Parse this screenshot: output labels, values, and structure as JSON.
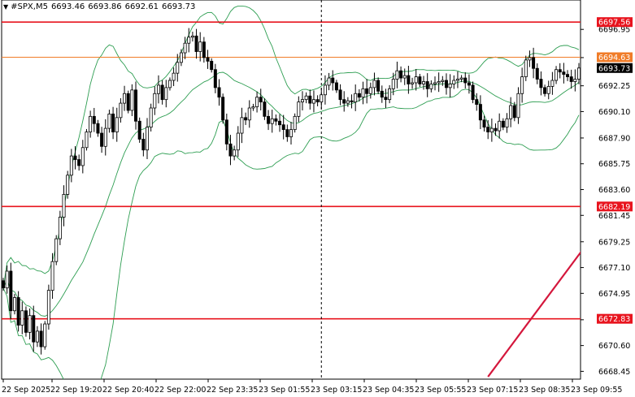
{
  "header": {
    "symbol": "#SPX,M5",
    "open": "6693.46",
    "high": "6693.86",
    "low": "6692.61",
    "close": "6693.73"
  },
  "chart_data": {
    "type": "candlestick",
    "ylim": [
      6667.8,
      6699.4
    ],
    "y_ticks": [
      "6696.95",
      "6694.60",
      "6692.25",
      "6690.10",
      "6687.90",
      "6685.75",
      "6683.60",
      "6681.45",
      "6679.25",
      "6677.10",
      "6674.95",
      "6672.75",
      "6670.60",
      "6668.45"
    ],
    "x_ticks": [
      "22 Sep 2025",
      "22 Sep 19:20",
      "22 Sep 20:40",
      "22 Sep 22:00",
      "22 Sep 23:35",
      "23 Sep 01:55",
      "23 Sep 03:15",
      "23 Sep 04:35",
      "23 Sep 05:55",
      "23 Sep 07:15",
      "23 Sep 08:35",
      "23 Sep 09:55"
    ],
    "price_lines": [
      {
        "label": "6697.56",
        "value": 6697.56,
        "color": "#e8141e"
      },
      {
        "label": "6694.63",
        "value": 6694.63,
        "color": "#f07c28"
      },
      {
        "label": "6682.19",
        "value": 6682.19,
        "color": "#e8141e"
      },
      {
        "label": "6672.83",
        "value": 6672.83,
        "color": "#e8141e"
      }
    ],
    "current_price": {
      "label": "6693.73",
      "value": 6693.73
    },
    "trend_line": {
      "from": [
        128,
        6668.0
      ],
      "to": [
        170,
        6685.8
      ],
      "color": "#d4173c"
    },
    "vertical_marker_index": 84,
    "close": [
      6675.4,
      6676.8,
      6673.5,
      6674.6,
      6672.3,
      6673.5,
      6671.7,
      6673.1,
      6670.9,
      6671.8,
      6670.5,
      6672.4,
      6675.2,
      6677.6,
      6679.5,
      6681.3,
      6683.2,
      6684.8,
      6686.4,
      6686.1,
      6685.6,
      6687.1,
      6688.4,
      6689.7,
      6689.1,
      6688.3,
      6687.2,
      6688.7,
      6689.9,
      6688.4,
      6689.6,
      6690.8,
      6691.6,
      6690.2,
      6691.9,
      6689.3,
      6687.8,
      6686.9,
      6688.8,
      6690.4,
      6691.6,
      6692.3,
      6691.1,
      6692.1,
      6692.7,
      6693.3,
      6694.2,
      6695.0,
      6695.8,
      6696.3,
      6696.4,
      6695.1,
      6695.9,
      6694.6,
      6694.3,
      6693.6,
      6692.1,
      6691.3,
      6689.4,
      6687.4,
      6686.4,
      6686.9,
      6688.3,
      6689.6,
      6689.4,
      6690.4,
      6690.5,
      6691.3,
      6690.9,
      6689.7,
      6689.1,
      6689.5,
      6689.3,
      6689.0,
      6688.6,
      6688.0,
      6688.6,
      6689.7,
      6690.9,
      6691.1,
      6691.4,
      6690.8,
      6691.1,
      6690.9,
      6691.5,
      6692.3,
      6692.9,
      6692.5,
      6691.9,
      6691.1,
      6690.8,
      6691.0,
      6690.9,
      6691.6,
      6691.3,
      6692.0,
      6691.6,
      6692.1,
      6692.7,
      6691.8,
      6691.3,
      6691.1,
      6692.0,
      6692.8,
      6693.5,
      6692.9,
      6693.1,
      6692.4,
      6692.5,
      6693.0,
      6692.4,
      6692.6,
      6692.0,
      6692.4,
      6692.5,
      6692.6,
      6692.7,
      6692.1,
      6692.4,
      6692.7,
      6692.8,
      6692.9,
      6692.5,
      6692.3,
      6691.1,
      6690.7,
      6689.4,
      6688.8,
      6688.4,
      6688.7,
      6688.5,
      6689.3,
      6688.8,
      6689.5,
      6690.6,
      6689.6,
      6691.6,
      6693.0,
      6694.4,
      6694.6,
      6693.7,
      6692.8,
      6692.1,
      6691.6,
      6692.2,
      6692.7,
      6693.6,
      6693.4,
      6693.2,
      6693.0,
      6692.6,
      6692.8,
      6693.73
    ]
  }
}
